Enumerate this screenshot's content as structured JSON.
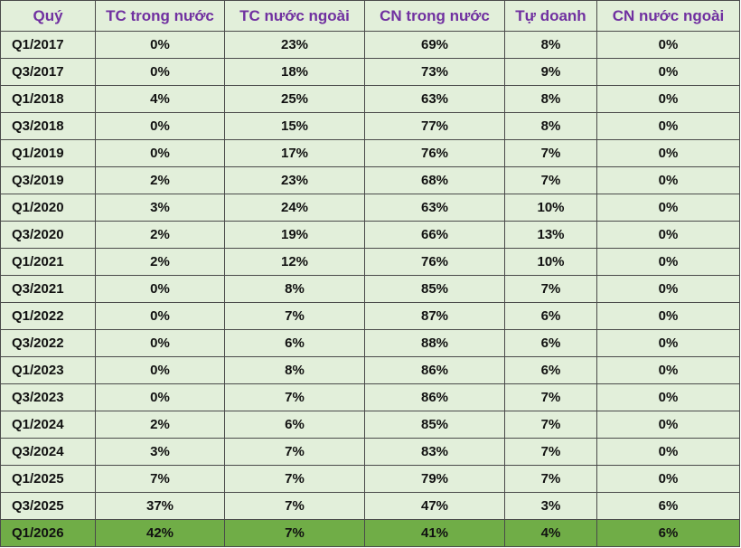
{
  "table": {
    "header": [
      "Quý",
      "TC trong nước",
      "TC nước ngoài",
      "CN trong nước",
      "Tự doanh",
      "CN nước ngoài"
    ],
    "rows": [
      [
        "Q1/2017",
        "0%",
        "23%",
        "69%",
        "8%",
        "0%"
      ],
      [
        "Q3/2017",
        "0%",
        "18%",
        "73%",
        "9%",
        "0%"
      ],
      [
        "Q1/2018",
        "4%",
        "25%",
        "63%",
        "8%",
        "0%"
      ],
      [
        "Q3/2018",
        "0%",
        "15%",
        "77%",
        "8%",
        "0%"
      ],
      [
        "Q1/2019",
        "0%",
        "17%",
        "76%",
        "7%",
        "0%"
      ],
      [
        "Q3/2019",
        "2%",
        "23%",
        "68%",
        "7%",
        "0%"
      ],
      [
        "Q1/2020",
        "3%",
        "24%",
        "63%",
        "10%",
        "0%"
      ],
      [
        "Q3/2020",
        "2%",
        "19%",
        "66%",
        "13%",
        "0%"
      ],
      [
        "Q1/2021",
        "2%",
        "12%",
        "76%",
        "10%",
        "0%"
      ],
      [
        "Q3/2021",
        "0%",
        "8%",
        "85%",
        "7%",
        "0%"
      ],
      [
        "Q1/2022",
        "0%",
        "7%",
        "87%",
        "6%",
        "0%"
      ],
      [
        "Q3/2022",
        "0%",
        "6%",
        "88%",
        "6%",
        "0%"
      ],
      [
        "Q1/2023",
        "0%",
        "8%",
        "86%",
        "6%",
        "0%"
      ],
      [
        "Q3/2023",
        "0%",
        "7%",
        "86%",
        "7%",
        "0%"
      ],
      [
        "Q1/2024",
        "2%",
        "6%",
        "85%",
        "7%",
        "0%"
      ],
      [
        "Q3/2024",
        "3%",
        "7%",
        "83%",
        "7%",
        "0%"
      ],
      [
        "Q1/2025",
        "7%",
        "7%",
        "79%",
        "7%",
        "0%"
      ],
      [
        "Q3/2025",
        "37%",
        "7%",
        "47%",
        "3%",
        "6%"
      ],
      [
        "Q1/2026",
        "42%",
        "7%",
        "41%",
        "4%",
        "6%"
      ]
    ]
  }
}
